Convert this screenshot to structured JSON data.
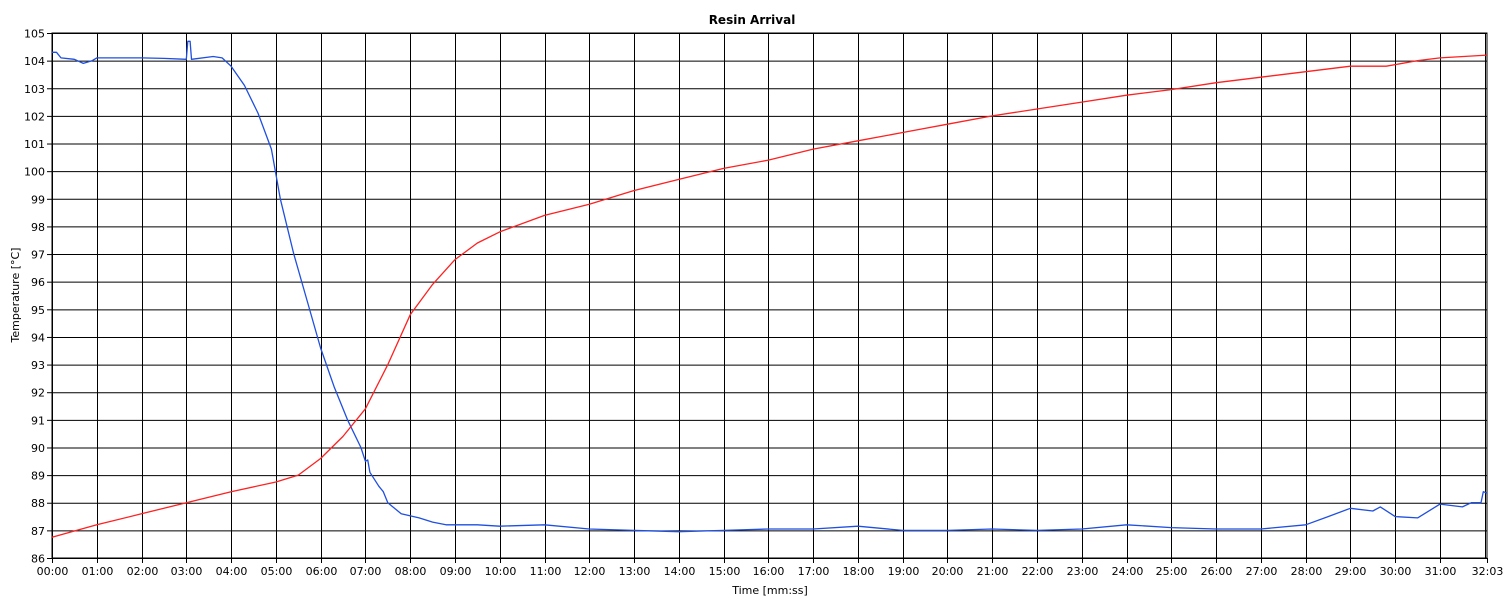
{
  "chart_data": {
    "type": "line",
    "title": "Resin Arrival",
    "xlabel": "Time [mm:ss]",
    "ylabel": "Temperature [°C]",
    "xlim": [
      "00:00",
      "32:03"
    ],
    "ylim": [
      86,
      105
    ],
    "grid": true,
    "x_ticks": [
      "00:00",
      "01:00",
      "02:00",
      "03:00",
      "04:00",
      "05:00",
      "06:00",
      "07:00",
      "08:00",
      "09:00",
      "10:00",
      "11:00",
      "12:00",
      "13:00",
      "14:00",
      "15:00",
      "16:00",
      "17:00",
      "18:00",
      "19:00",
      "20:00",
      "21:00",
      "22:00",
      "23:00",
      "24:00",
      "25:00",
      "26:00",
      "27:00",
      "28:00",
      "29:00",
      "30:00",
      "31:00",
      "32:03"
    ],
    "y_ticks": [
      86,
      87,
      88,
      89,
      90,
      91,
      92,
      93,
      94,
      95,
      96,
      97,
      98,
      99,
      100,
      101,
      102,
      103,
      104,
      105
    ],
    "series": [
      {
        "color": "#1f4fe0",
        "points": [
          [
            "00:00",
            104.3
          ],
          [
            "00:06",
            104.3
          ],
          [
            "00:12",
            104.1
          ],
          [
            "00:30",
            104.05
          ],
          [
            "00:42",
            103.9
          ],
          [
            "00:54",
            104.0
          ],
          [
            "01:00",
            104.1
          ],
          [
            "01:30",
            104.1
          ],
          [
            "02:00",
            104.1
          ],
          [
            "02:30",
            104.08
          ],
          [
            "03:00",
            104.05
          ],
          [
            "03:02",
            104.7
          ],
          [
            "03:05",
            104.7
          ],
          [
            "03:07",
            104.05
          ],
          [
            "03:36",
            104.15
          ],
          [
            "03:48",
            104.1
          ],
          [
            "04:00",
            103.8
          ],
          [
            "04:18",
            103.1
          ],
          [
            "04:36",
            102.1
          ],
          [
            "04:54",
            100.8
          ],
          [
            "05:06",
            99.0
          ],
          [
            "05:24",
            97.0
          ],
          [
            "05:42",
            95.3
          ],
          [
            "06:00",
            93.6
          ],
          [
            "06:18",
            92.2
          ],
          [
            "06:36",
            91.0
          ],
          [
            "06:54",
            90.0
          ],
          [
            "07:00",
            89.5
          ],
          [
            "07:03",
            89.55
          ],
          [
            "07:06",
            89.1
          ],
          [
            "07:18",
            88.6
          ],
          [
            "07:24",
            88.4
          ],
          [
            "07:30",
            88.0
          ],
          [
            "07:48",
            87.6
          ],
          [
            "08:12",
            87.45
          ],
          [
            "08:30",
            87.3
          ],
          [
            "08:48",
            87.2
          ],
          [
            "09:30",
            87.2
          ],
          [
            "10:00",
            87.15
          ],
          [
            "11:00",
            87.2
          ],
          [
            "12:00",
            87.05
          ],
          [
            "13:00",
            87.0
          ],
          [
            "14:00",
            86.95
          ],
          [
            "15:00",
            87.0
          ],
          [
            "16:00",
            87.05
          ],
          [
            "17:00",
            87.05
          ],
          [
            "18:00",
            87.15
          ],
          [
            "19:00",
            87.0
          ],
          [
            "20:00",
            87.0
          ],
          [
            "21:00",
            87.05
          ],
          [
            "22:00",
            87.0
          ],
          [
            "23:00",
            87.05
          ],
          [
            "24:00",
            87.2
          ],
          [
            "25:00",
            87.1
          ],
          [
            "26:00",
            87.05
          ],
          [
            "27:00",
            87.05
          ],
          [
            "28:00",
            87.2
          ],
          [
            "28:30",
            87.5
          ],
          [
            "29:00",
            87.8
          ],
          [
            "29:30",
            87.7
          ],
          [
            "29:40",
            87.85
          ],
          [
            "30:00",
            87.5
          ],
          [
            "30:30",
            87.45
          ],
          [
            "31:00",
            87.95
          ],
          [
            "31:30",
            87.85
          ],
          [
            "31:42",
            88.0
          ],
          [
            "31:55",
            88.0
          ],
          [
            "31:58",
            88.4
          ],
          [
            "32:03",
            88.35
          ]
        ]
      },
      {
        "color": "#ff2020",
        "points": [
          [
            "00:00",
            86.75
          ],
          [
            "01:00",
            87.2
          ],
          [
            "02:00",
            87.6
          ],
          [
            "03:00",
            88.0
          ],
          [
            "04:00",
            88.4
          ],
          [
            "05:00",
            88.75
          ],
          [
            "05:30",
            89.0
          ],
          [
            "06:00",
            89.6
          ],
          [
            "06:30",
            90.4
          ],
          [
            "07:00",
            91.4
          ],
          [
            "07:30",
            93.0
          ],
          [
            "08:00",
            94.8
          ],
          [
            "08:30",
            95.9
          ],
          [
            "09:00",
            96.8
          ],
          [
            "09:30",
            97.4
          ],
          [
            "10:00",
            97.8
          ],
          [
            "11:00",
            98.4
          ],
          [
            "12:00",
            98.8
          ],
          [
            "13:00",
            99.3
          ],
          [
            "14:00",
            99.7
          ],
          [
            "15:00",
            100.1
          ],
          [
            "16:00",
            100.4
          ],
          [
            "17:00",
            100.8
          ],
          [
            "18:00",
            101.1
          ],
          [
            "19:00",
            101.4
          ],
          [
            "20:00",
            101.7
          ],
          [
            "21:00",
            102.0
          ],
          [
            "22:00",
            102.25
          ],
          [
            "23:00",
            102.5
          ],
          [
            "24:00",
            102.75
          ],
          [
            "25:00",
            102.95
          ],
          [
            "26:00",
            103.2
          ],
          [
            "27:00",
            103.4
          ],
          [
            "28:00",
            103.6
          ],
          [
            "29:00",
            103.8
          ],
          [
            "29:48",
            103.8
          ],
          [
            "30:30",
            104.0
          ],
          [
            "31:00",
            104.1
          ],
          [
            "32:03",
            104.2
          ]
        ]
      }
    ]
  }
}
